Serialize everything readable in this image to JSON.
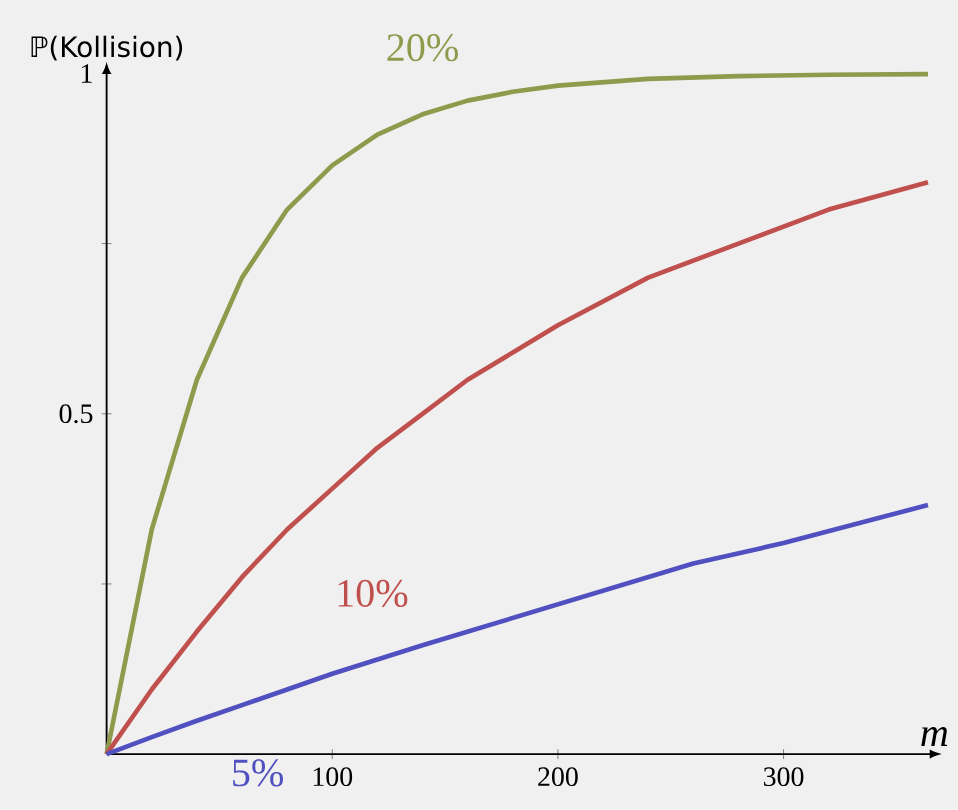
{
  "chart_data": {
    "type": "line",
    "ylabel": "ℙ(Kollision)",
    "xlabel": "m",
    "xlim": [
      0,
      365
    ],
    "ylim": [
      0,
      1
    ],
    "xticks": [
      100,
      200,
      300
    ],
    "yticks": [
      {
        "value": 0.25,
        "label": null
      },
      0.5,
      {
        "value": 0.75,
        "label": null
      },
      1
    ],
    "legend": false,
    "grid": false,
    "marker": "none",
    "line_style": "solid",
    "series": [
      {
        "name": "20%",
        "color": "#8f9a4c",
        "x": [
          0,
          20,
          40,
          60,
          80,
          100,
          120,
          140,
          160,
          180,
          200,
          240,
          280,
          320,
          364
        ],
        "values": [
          0,
          0.33,
          0.55,
          0.7,
          0.8,
          0.865,
          0.91,
          0.94,
          0.96,
          0.973,
          0.982,
          0.992,
          0.996,
          0.998,
          0.999
        ]
      },
      {
        "name": "10%",
        "color": "#c0504d",
        "x": [
          0,
          20,
          40,
          60,
          80,
          100,
          120,
          140,
          160,
          180,
          200,
          240,
          280,
          320,
          364
        ],
        "values": [
          0,
          0.095,
          0.18,
          0.26,
          0.33,
          0.39,
          0.45,
          0.5,
          0.55,
          0.59,
          0.63,
          0.7,
          0.75,
          0.8,
          0.84
        ]
      },
      {
        "name": "5%",
        "color": "#5050c0",
        "x": [
          0,
          20,
          40,
          60,
          80,
          100,
          140,
          180,
          220,
          260,
          300,
          364
        ],
        "values": [
          0,
          0.025,
          0.049,
          0.072,
          0.095,
          0.118,
          0.16,
          0.2,
          0.24,
          0.28,
          0.31,
          0.366
        ]
      }
    ]
  }
}
